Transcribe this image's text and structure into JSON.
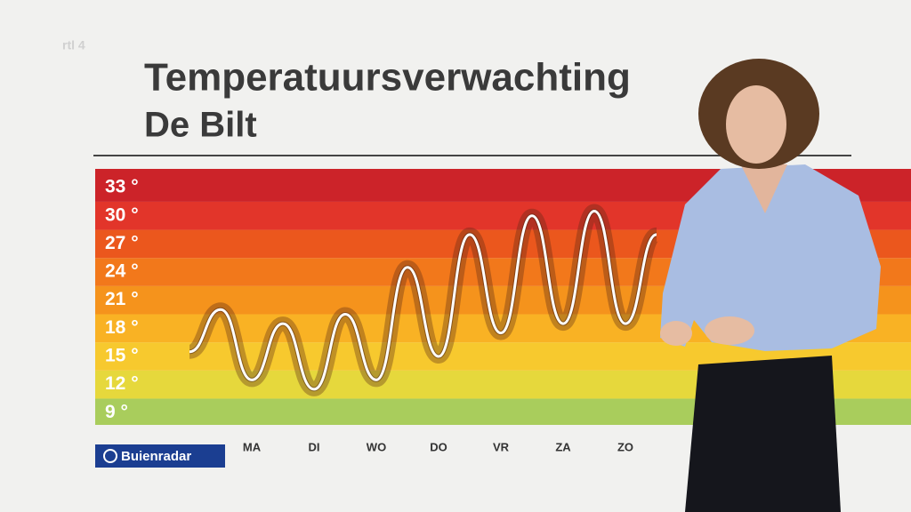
{
  "chart_data": {
    "type": "line",
    "title": "Temperatuursverwachting",
    "subtitle": "De Bilt",
    "categories": [
      null,
      null,
      "MA",
      null,
      "DI",
      null,
      "WO",
      null,
      "DO",
      null,
      "VR",
      null,
      "ZA",
      null,
      "ZO",
      null
    ],
    "series": [
      {
        "name": "Temperatuur",
        "color": "#ffffff",
        "values": [
          15.5,
          20,
          12.5,
          18.5,
          11.5,
          19.5,
          12.5,
          24.5,
          15,
          28,
          17.5,
          30,
          18.5,
          30.5,
          18.5,
          28
        ]
      }
    ],
    "ylim": [
      7.7,
      35
    ],
    "yticks": [
      {
        "value": 9,
        "label": "9 °"
      },
      {
        "value": 12,
        "label": "12 °"
      },
      {
        "value": 15,
        "label": "15 °"
      },
      {
        "value": 18,
        "label": "18 °"
      },
      {
        "value": 21,
        "label": "21 °"
      },
      {
        "value": 24,
        "label": "24 °"
      },
      {
        "value": 27,
        "label": "27 °"
      },
      {
        "value": 30,
        "label": "30 °"
      },
      {
        "value": 33,
        "label": "33 °"
      }
    ],
    "band_colors": [
      "#a9cd5c",
      "#e6d83c",
      "#f7c92e",
      "#f9b224",
      "#f5931c",
      "#f2781b",
      "#eb571d",
      "#e2352a",
      "#cc2329"
    ]
  },
  "branding": {
    "channel": "rtl 4",
    "source": "Buienradar"
  }
}
